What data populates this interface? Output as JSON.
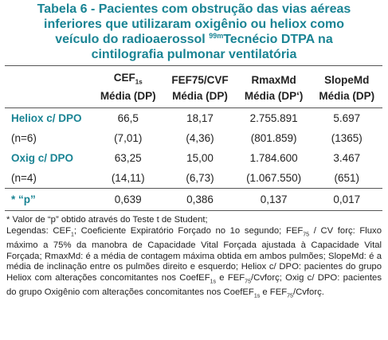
{
  "title": [
    "Tabela 6 - Pacientes com obstrução das vias aéreas inferiores que utilizaram oxigênio ou heliox como veículo do radioaerossol ",
    {
      "sup": "99m"
    },
    "Tecnécio DTPA na cintilografia pulmonar ventilatória"
  ],
  "table": {
    "columns": [
      {
        "name": [
          "CEF",
          {
            "sub": "1s"
          }
        ],
        "stat": "Média (DP)"
      },
      {
        "name": [
          "FEF75/CVF"
        ],
        "stat": "Média (DP)"
      },
      {
        "name": [
          "RmaxMd"
        ],
        "stat": "Média (DP‘)"
      },
      {
        "name": [
          "SlopeMd"
        ],
        "stat": "Média (DP)"
      }
    ],
    "rows": [
      [
        "Heliox c/ DPO",
        "66,5",
        "18,17",
        "2.755.891",
        "5.697"
      ],
      [
        "(n=6)",
        "(7,01)",
        "(4,36)",
        "(801.859)",
        "(1365)"
      ],
      [
        "Oxig c/ DPO",
        "63,25",
        "15,00",
        "1.784.600",
        "3.467"
      ],
      [
        "(n=4)",
        "(14,11)",
        "(6,73)",
        "(1.067.550)",
        "(651)"
      ],
      [
        "* “p”",
        "0,639",
        "0,386",
        "0,137",
        "0,017"
      ]
    ]
  },
  "notes": [
    [
      "* Valor de “p” obtido através do Teste t de Student;"
    ],
    [
      "Legendas: CEF",
      {
        "sub": "1"
      },
      "; Coeficiente Expiratório Forçado no 1o segundo; FEF",
      {
        "sub": "75"
      },
      " / CV forç: Fluxo máximo a 75% da manobra de Capacidade Vital Forçada ajustada à Capacidade Vital Forçada; RmaxMd: é a média de contagem máxima obtida em ambos pulmões; SlopeMd: é a média de inclinação entre os pulmões direito e esquerdo; Heliox c/ DPO: pacientes do grupo Heliox com alterações concomitantes nos CoefEF",
      {
        "sub": "1s"
      },
      " e FEF",
      {
        "sub": "75"
      },
      "/Cvforç; Oxig c/ DPO: pacientes do grupo Oxigênio com alterações concomitantes nos CoefEF",
      {
        "sub": "1s"
      },
      " e FEF",
      {
        "sub": "75"
      },
      "/Cvforç."
    ]
  ]
}
